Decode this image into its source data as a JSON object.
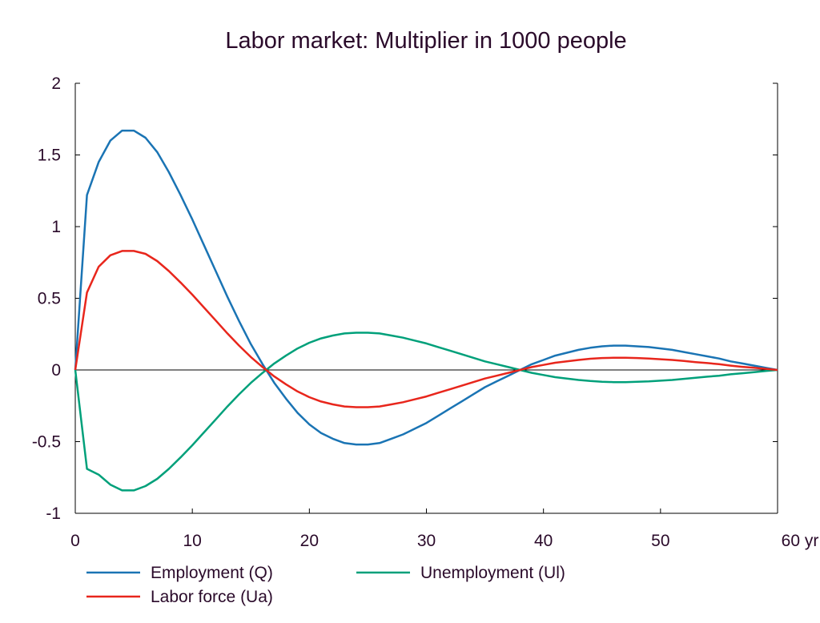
{
  "chart_data": {
    "type": "line",
    "title": "Labor market: Multiplier in 1000 people",
    "xlabel": "",
    "ylabel": "",
    "xlim": [
      0,
      60
    ],
    "ylim": [
      -1,
      2
    ],
    "x_ticks": [
      0,
      10,
      20,
      30,
      40,
      50,
      60
    ],
    "x_tick_labels": [
      "0",
      "10",
      "20",
      "30",
      "40",
      "50",
      "60 yr"
    ],
    "y_ticks": [
      2,
      1.5,
      1,
      0.5,
      0,
      -0.5,
      -1
    ],
    "y_tick_labels": [
      "2",
      "1.5",
      "1",
      "0.5",
      "0",
      "-0.5",
      "-1"
    ],
    "grid": false,
    "legend_position": "bottom",
    "x": [
      0,
      1,
      2,
      3,
      4,
      5,
      6,
      7,
      8,
      9,
      10,
      11,
      12,
      13,
      14,
      15,
      16,
      17,
      18,
      19,
      20,
      21,
      22,
      23,
      24,
      25,
      26,
      27,
      28,
      29,
      30,
      31,
      32,
      33,
      34,
      35,
      36,
      37,
      38,
      39,
      40,
      41,
      42,
      43,
      44,
      45,
      46,
      47,
      48,
      49,
      50,
      51,
      52,
      53,
      54,
      55,
      56,
      57,
      58,
      59,
      60
    ],
    "series": [
      {
        "name": "Employment (Q)",
        "color": "#1a74b4",
        "values": [
          0,
          1.22,
          1.45,
          1.6,
          1.67,
          1.67,
          1.62,
          1.52,
          1.38,
          1.22,
          1.05,
          0.87,
          0.69,
          0.51,
          0.34,
          0.18,
          0.04,
          -0.09,
          -0.2,
          -0.3,
          -0.38,
          -0.44,
          -0.48,
          -0.51,
          -0.52,
          -0.52,
          -0.51,
          -0.48,
          -0.45,
          -0.41,
          -0.37,
          -0.32,
          -0.27,
          -0.22,
          -0.17,
          -0.12,
          -0.08,
          -0.04,
          0.0,
          0.04,
          0.07,
          0.1,
          0.12,
          0.14,
          0.155,
          0.165,
          0.17,
          0.17,
          0.165,
          0.16,
          0.15,
          0.14,
          0.125,
          0.11,
          0.095,
          0.08,
          0.06,
          0.045,
          0.03,
          0.015,
          0.0
        ]
      },
      {
        "name": "Unemployment (Ul)",
        "color": "#00a07a",
        "values": [
          0,
          -0.69,
          -0.73,
          -0.8,
          -0.84,
          -0.84,
          -0.81,
          -0.76,
          -0.69,
          -0.61,
          -0.525,
          -0.435,
          -0.345,
          -0.255,
          -0.17,
          -0.09,
          -0.02,
          0.045,
          0.1,
          0.15,
          0.19,
          0.22,
          0.24,
          0.255,
          0.26,
          0.26,
          0.255,
          0.24,
          0.225,
          0.205,
          0.185,
          0.16,
          0.135,
          0.11,
          0.085,
          0.06,
          0.04,
          0.02,
          0,
          -0.02,
          -0.035,
          -0.05,
          -0.06,
          -0.07,
          -0.077,
          -0.082,
          -0.085,
          -0.085,
          -0.082,
          -0.08,
          -0.075,
          -0.07,
          -0.062,
          -0.055,
          -0.047,
          -0.04,
          -0.03,
          -0.023,
          -0.015,
          -0.007,
          0
        ]
      },
      {
        "name": "Labor force (Ua)",
        "color": "#e8261c",
        "values": [
          0,
          0.54,
          0.72,
          0.8,
          0.83,
          0.83,
          0.81,
          0.76,
          0.69,
          0.61,
          0.525,
          0.435,
          0.345,
          0.255,
          0.17,
          0.09,
          0.02,
          -0.045,
          -0.1,
          -0.15,
          -0.19,
          -0.22,
          -0.24,
          -0.255,
          -0.26,
          -0.26,
          -0.255,
          -0.24,
          -0.225,
          -0.205,
          -0.185,
          -0.16,
          -0.135,
          -0.11,
          -0.085,
          -0.06,
          -0.04,
          -0.02,
          0,
          0.02,
          0.035,
          0.05,
          0.06,
          0.07,
          0.078,
          0.083,
          0.085,
          0.085,
          0.083,
          0.08,
          0.075,
          0.07,
          0.063,
          0.055,
          0.048,
          0.04,
          0.03,
          0.022,
          0.015,
          0.008,
          0.0
        ]
      }
    ]
  }
}
